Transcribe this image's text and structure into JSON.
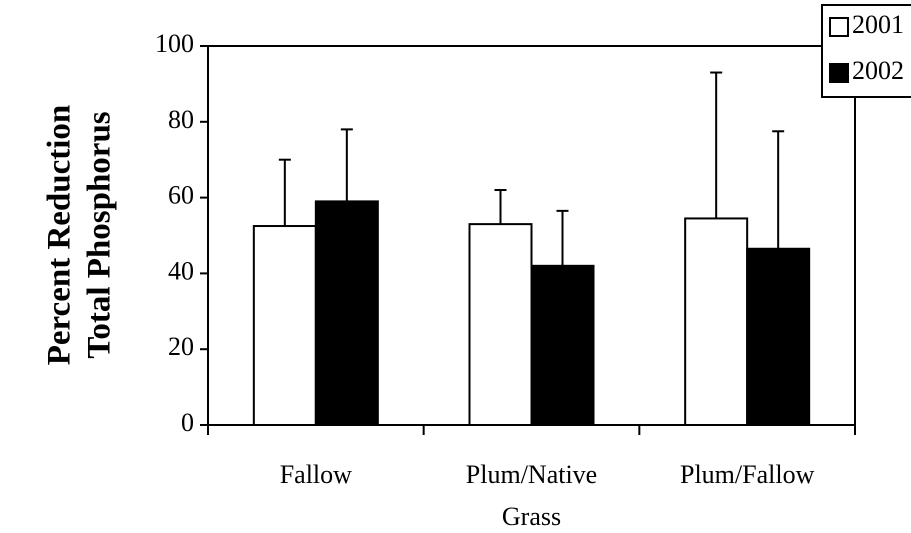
{
  "chart_data": {
    "type": "bar",
    "y_label": [
      "Percent Reduction",
      "Total Phosphorus"
    ],
    "categories": [
      "Fallow",
      "Plum/Native Grass",
      "Plum/Fallow"
    ],
    "series": [
      {
        "name": "2001",
        "color": "#ffffff",
        "values": [
          52.5,
          53,
          54.5
        ],
        "errors": [
          17.5,
          9,
          38.5
        ]
      },
      {
        "name": "2002",
        "color": "#000000",
        "values": [
          59,
          42,
          46.5
        ],
        "errors": [
          19,
          14.5,
          31
        ]
      }
    ],
    "ylim": [
      0,
      100
    ],
    "yticks": [
      0,
      20,
      40,
      60,
      80,
      100
    ],
    "legend": "upper right",
    "grid": false
  }
}
